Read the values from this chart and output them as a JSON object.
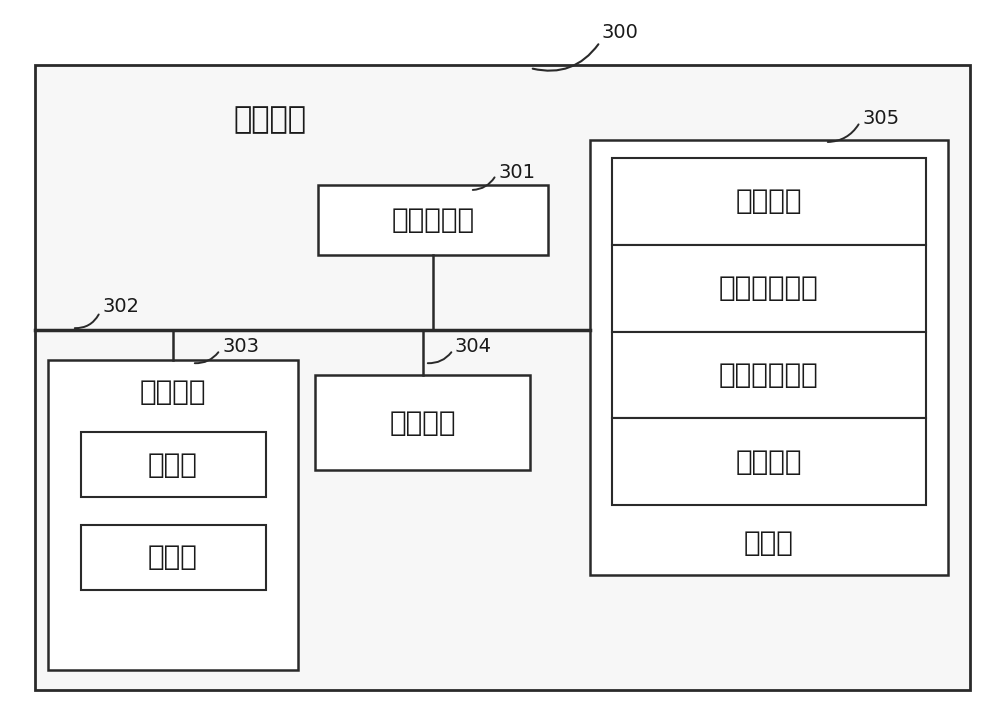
{
  "title_label": "300",
  "main_box_label": "电子设备",
  "cpu_label": "中央处理器",
  "cpu_ref": "301",
  "bus_ref": "302",
  "ui_ref": "303",
  "net_ref": "304",
  "storage_ref": "305",
  "ui_box_label": "用户接口",
  "ui_sub1": "摄像头",
  "ui_sub2": "显示屏",
  "net_box_label": "网络接口",
  "storage_box_label": "存储器",
  "storage_items": [
    "操作系统",
    "网络通信模块",
    "用户接口模块",
    "程序指令"
  ],
  "bg_color": "#ffffff",
  "box_color": "#ffffff",
  "line_color": "#2a2a2a",
  "text_color": "#1a1a1a",
  "font_size_title": 22,
  "font_size_label": 20,
  "font_size_medium": 17,
  "font_size_small": 15,
  "font_size_ref": 14
}
